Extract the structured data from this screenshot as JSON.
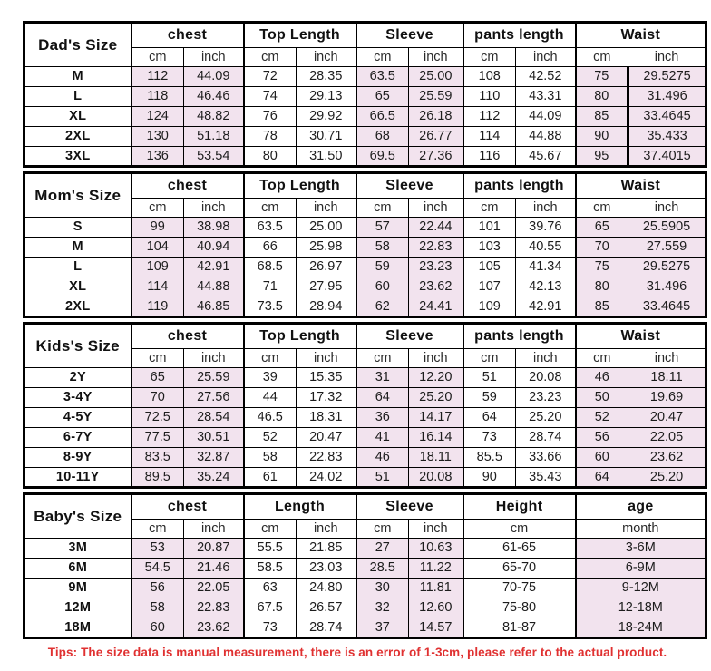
{
  "colors": {
    "shade": "#f2e3ee",
    "tips_text": "#e03131",
    "border": "#000000"
  },
  "tips": "Tips: The size data is manual measurement, there is an error of 1-3cm, please refer to the actual product.",
  "sections": [
    {
      "id": "dads",
      "title": "Dad's Size",
      "groups": [
        {
          "label": "chest",
          "sub": 2
        },
        {
          "label": "Top Length",
          "sub": 2
        },
        {
          "label": "Sleeve",
          "sub": 2
        },
        {
          "label": "pants length",
          "sub": 2
        },
        {
          "label": "Waist",
          "sub": 2
        }
      ],
      "units": [
        "cm",
        "inch",
        "cm",
        "inch",
        "cm",
        "inch",
        "cm",
        "inch",
        "cm",
        "inch"
      ],
      "heavy_divider": [
        4,
        1
      ],
      "rows": [
        {
          "label": "M",
          "values": [
            "112",
            "44.09",
            "72",
            "28.35",
            "63.5",
            "25.00",
            "108",
            "42.52",
            "75",
            "29.5275"
          ]
        },
        {
          "label": "L",
          "values": [
            "118",
            "46.46",
            "74",
            "29.13",
            "65",
            "25.59",
            "110",
            "43.31",
            "80",
            "31.496"
          ]
        },
        {
          "label": "XL",
          "values": [
            "124",
            "48.82",
            "76",
            "29.92",
            "66.5",
            "26.18",
            "112",
            "44.09",
            "85",
            "33.4645"
          ]
        },
        {
          "label": "2XL",
          "values": [
            "130",
            "51.18",
            "78",
            "30.71",
            "68",
            "26.77",
            "114",
            "44.88",
            "90",
            "35.433"
          ]
        },
        {
          "label": "3XL",
          "values": [
            "136",
            "53.54",
            "80",
            "31.50",
            "69.5",
            "27.36",
            "116",
            "45.67",
            "95",
            "37.4015"
          ]
        }
      ]
    },
    {
      "id": "moms",
      "title": "Mom's Size",
      "groups": [
        {
          "label": "chest",
          "sub": 2
        },
        {
          "label": "Top Length",
          "sub": 2
        },
        {
          "label": "Sleeve",
          "sub": 2
        },
        {
          "label": "pants length",
          "sub": 2
        },
        {
          "label": "Waist",
          "sub": 2
        }
      ],
      "units": [
        "cm",
        "inch",
        "cm",
        "inch",
        "cm",
        "inch",
        "cm",
        "inch",
        "cm",
        "inch"
      ],
      "rows": [
        {
          "label": "S",
          "values": [
            "99",
            "38.98",
            "63.5",
            "25.00",
            "57",
            "22.44",
            "101",
            "39.76",
            "65",
            "25.5905"
          ]
        },
        {
          "label": "M",
          "values": [
            "104",
            "40.94",
            "66",
            "25.98",
            "58",
            "22.83",
            "103",
            "40.55",
            "70",
            "27.559"
          ]
        },
        {
          "label": "L",
          "values": [
            "109",
            "42.91",
            "68.5",
            "26.97",
            "59",
            "23.23",
            "105",
            "41.34",
            "75",
            "29.5275"
          ]
        },
        {
          "label": "XL",
          "values": [
            "114",
            "44.88",
            "71",
            "27.95",
            "60",
            "23.62",
            "107",
            "42.13",
            "80",
            "31.496"
          ]
        },
        {
          "label": "2XL",
          "values": [
            "119",
            "46.85",
            "73.5",
            "28.94",
            "62",
            "24.41",
            "109",
            "42.91",
            "85",
            "33.4645"
          ]
        }
      ]
    },
    {
      "id": "kids",
      "title": "Kids's Size",
      "groups": [
        {
          "label": "chest",
          "sub": 2
        },
        {
          "label": "Top Length",
          "sub": 2
        },
        {
          "label": "Sleeve",
          "sub": 2
        },
        {
          "label": "pants length",
          "sub": 2
        },
        {
          "label": "Waist",
          "sub": 2
        }
      ],
      "units": [
        "cm",
        "inch",
        "cm",
        "inch",
        "cm",
        "inch",
        "cm",
        "inch",
        "cm",
        "inch"
      ],
      "rows": [
        {
          "label": "2Y",
          "values": [
            "65",
            "25.59",
            "39",
            "15.35",
            "31",
            "12.20",
            "51",
            "20.08",
            "46",
            "18.11"
          ]
        },
        {
          "label": "3-4Y",
          "values": [
            "70",
            "27.56",
            "44",
            "17.32",
            "64",
            "25.20",
            "59",
            "23.23",
            "50",
            "19.69"
          ]
        },
        {
          "label": "4-5Y",
          "values": [
            "72.5",
            "28.54",
            "46.5",
            "18.31",
            "36",
            "14.17",
            "64",
            "25.20",
            "52",
            "20.47"
          ]
        },
        {
          "label": "6-7Y",
          "values": [
            "77.5",
            "30.51",
            "52",
            "20.47",
            "41",
            "16.14",
            "73",
            "28.74",
            "56",
            "22.05"
          ]
        },
        {
          "label": "8-9Y",
          "values": [
            "83.5",
            "32.87",
            "58",
            "22.83",
            "46",
            "18.11",
            "85.5",
            "33.66",
            "60",
            "23.62"
          ]
        },
        {
          "label": "10-11Y",
          "values": [
            "89.5",
            "35.24",
            "61",
            "24.02",
            "51",
            "20.08",
            "90",
            "35.43",
            "64",
            "25.20"
          ]
        }
      ]
    },
    {
      "id": "babys",
      "title": "Baby's Size",
      "groups": [
        {
          "label": "chest",
          "sub": 2
        },
        {
          "label": "Length",
          "sub": 2
        },
        {
          "label": "Sleeve",
          "sub": 2
        },
        {
          "label": "Height",
          "sub": 1
        },
        {
          "label": "age",
          "sub": 1
        }
      ],
      "units": [
        "cm",
        "inch",
        "cm",
        "inch",
        "cm",
        "inch",
        "cm",
        "month"
      ],
      "rows": [
        {
          "label": "3M",
          "values": [
            "53",
            "20.87",
            "55.5",
            "21.85",
            "27",
            "10.63",
            "61-65",
            "3-6M"
          ]
        },
        {
          "label": "6M",
          "values": [
            "54.5",
            "21.46",
            "58.5",
            "23.03",
            "28.5",
            "11.22",
            "65-70",
            "6-9M"
          ]
        },
        {
          "label": "9M",
          "values": [
            "56",
            "22.05",
            "63",
            "24.80",
            "30",
            "11.81",
            "70-75",
            "9-12M"
          ]
        },
        {
          "label": "12M",
          "values": [
            "58",
            "22.83",
            "67.5",
            "26.57",
            "32",
            "12.60",
            "75-80",
            "12-18M"
          ]
        },
        {
          "label": "18M",
          "values": [
            "60",
            "23.62",
            "73",
            "28.74",
            "37",
            "14.57",
            "81-87",
            "18-24M"
          ]
        }
      ]
    }
  ]
}
